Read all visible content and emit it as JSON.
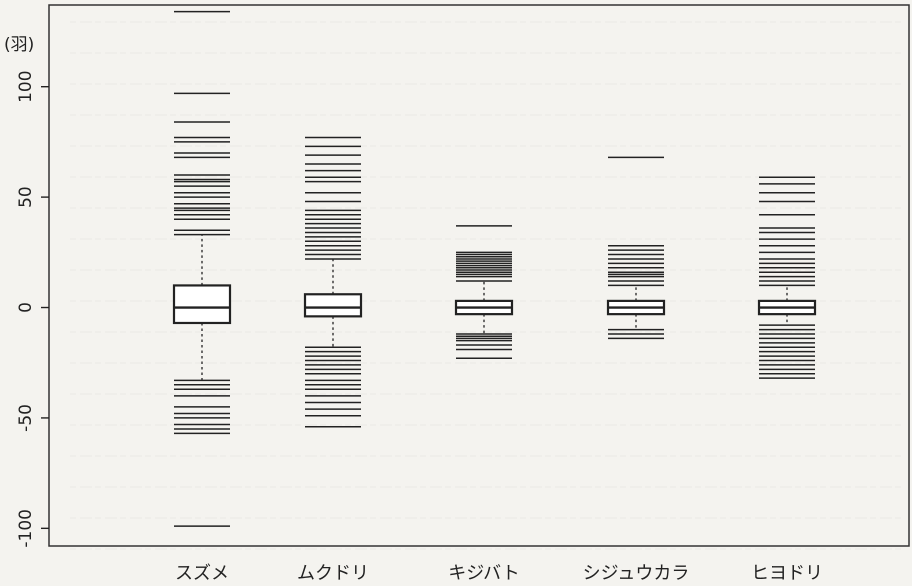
{
  "chart_data": {
    "type": "boxplot",
    "ylabel": "(羽)",
    "ylim": [
      -108,
      137
    ],
    "yticks": [
      -100,
      -50,
      0,
      50,
      100
    ],
    "grid": false,
    "colors": {
      "ink": "#222222",
      "frame": "#333333",
      "bleed": "#c9c7c0"
    },
    "categories": [
      "スズメ",
      "ムクドリ",
      "キジバト",
      "シジュウカラ",
      "ヒヨドリ"
    ],
    "series": [
      {
        "category": "スズメ",
        "q1": -7,
        "median": 0,
        "q3": 10,
        "whisker_low": -33,
        "whisker_high": 33,
        "outliers": [
          -99,
          -57,
          -55,
          -53,
          -50,
          -48,
          -45,
          -40,
          -37,
          -35,
          35,
          40,
          42,
          44,
          45,
          47,
          50,
          52,
          55,
          57,
          58,
          60,
          68,
          70,
          75,
          77,
          84,
          97,
          134
        ]
      },
      {
        "category": "ムクドリ",
        "q1": -4,
        "median": 0,
        "q3": 6,
        "whisker_low": -18,
        "whisker_high": 22,
        "outliers": [
          -54,
          -49,
          -46,
          -43,
          -40,
          -37,
          -35,
          -33,
          -30,
          -28,
          -26,
          -24,
          -22,
          -20,
          24,
          26,
          28,
          30,
          32,
          34,
          36,
          38,
          40,
          42,
          44,
          48,
          52,
          57,
          59,
          62,
          65,
          69,
          73,
          77
        ]
      },
      {
        "category": "キジバト",
        "q1": -3,
        "median": 0,
        "q3": 3,
        "whisker_low": -12,
        "whisker_high": 12,
        "outliers": [
          -23,
          -19,
          -17,
          -15,
          -14,
          -13,
          14,
          15,
          16,
          17,
          18,
          19,
          20,
          21,
          22,
          23,
          24,
          25,
          37
        ]
      },
      {
        "category": "シジュウカラ",
        "q1": -3,
        "median": 0,
        "q3": 3,
        "whisker_low": -10,
        "whisker_high": 10,
        "outliers": [
          -14,
          -12,
          12,
          14,
          15,
          16,
          18,
          20,
          22,
          24,
          26,
          28,
          68
        ]
      },
      {
        "category": "ヒヨドリ",
        "q1": -3,
        "median": 0,
        "q3": 3,
        "whisker_low": -8,
        "whisker_high": 10,
        "outliers": [
          -32,
          -30,
          -28,
          -26,
          -24,
          -22,
          -20,
          -18,
          -16,
          -14,
          -12,
          -10,
          12,
          14,
          16,
          18,
          20,
          22,
          25,
          28,
          31,
          34,
          36,
          42,
          48,
          52,
          56,
          59
        ]
      }
    ]
  }
}
